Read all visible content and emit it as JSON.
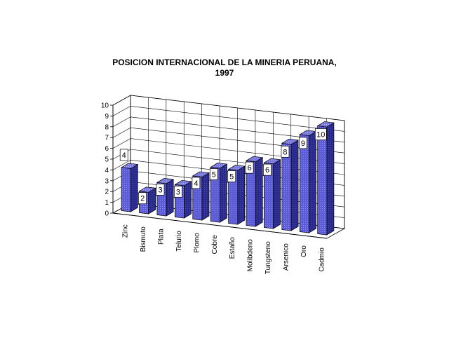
{
  "chart_data": {
    "type": "bar",
    "title_line1": "POSICION INTERNACIONAL DE LA MINERIA PERUANA,",
    "title_line2": "1997",
    "categories": [
      "Zinc",
      "Bismuto",
      "Plata",
      "Telurio",
      "Plomo",
      "Cobre",
      "Estaño",
      "Molibdeno",
      "Tungsteno",
      "Arsenico",
      "Oro",
      "Cadmio"
    ],
    "values": [
      4,
      2,
      3,
      3,
      4,
      5,
      5,
      6,
      6,
      8,
      9,
      10
    ],
    "yticks": [
      "0",
      "1",
      "2",
      "3",
      "4",
      "5",
      "6",
      "7",
      "8",
      "9",
      "10"
    ],
    "ylim": [
      0,
      10
    ],
    "grid": true,
    "legend": "none",
    "colors": {
      "front": "#5c5cd6",
      "side": "#2a2a8a",
      "top": "#8a8ae8",
      "wall": "#ffffff",
      "grid": "#000000"
    }
  }
}
